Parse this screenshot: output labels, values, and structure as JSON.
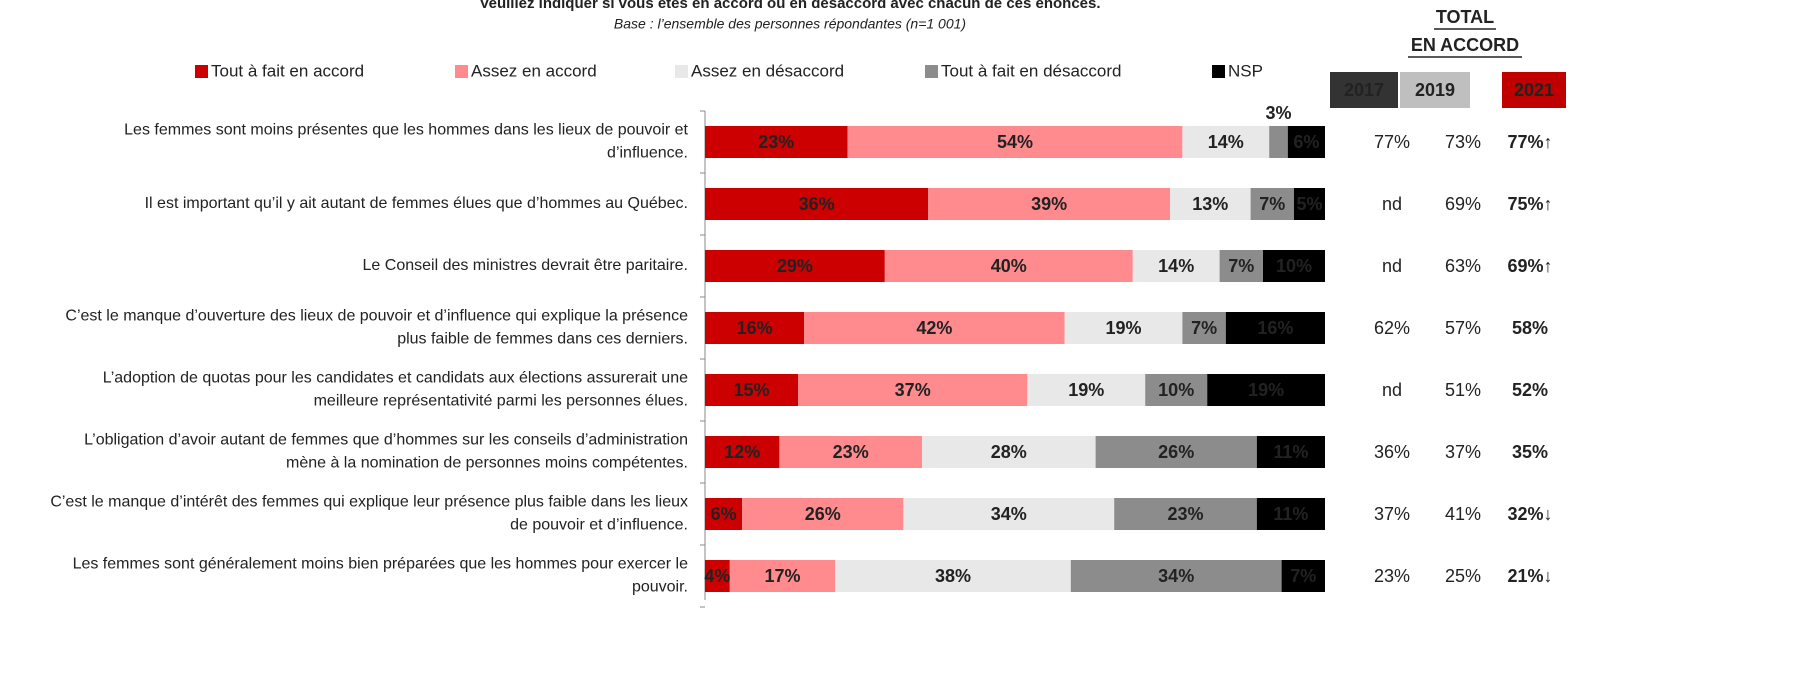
{
  "chart_data": {
    "type": "stacked-barh",
    "title": "Veuillez indiquer si vous êtes en accord ou en désaccord avec chacun de ces énoncés.",
    "subtitle": "Base : l’ensemble des personnes répondantes (n=1 001)",
    "categories": [
      [
        "Les femmes sont moins présentes que les hommes dans les lieux de pouvoir et",
        "d’influence."
      ],
      [
        "Il est important qu’il y ait autant de femmes élues que d’hommes au Québec."
      ],
      [
        "Le Conseil des ministres devrait être paritaire."
      ],
      [
        "C’est le manque d’ouverture des lieux de pouvoir et d’influence qui explique la présence",
        "plus faible de femmes dans ces derniers."
      ],
      [
        "L’adoption de quotas pour les candidates et candidats aux élections assurerait une",
        "meilleure représentativité parmi les personnes élues."
      ],
      [
        "L’obligation d’avoir autant de femmes que d’hommes sur les conseils d’administration",
        "mène à la nomination de personnes moins compétentes."
      ],
      [
        "C’est le manque d’intérêt des femmes qui explique leur présence plus faible dans les lieux",
        "de pouvoir et d’influence."
      ],
      [
        "Les femmes sont généralement moins bien préparées que les hommes pour exercer le",
        "pouvoir."
      ]
    ],
    "xlim": [
      0,
      100
    ],
    "series": [
      {
        "name": "Tout à fait en accord",
        "color": "#cc0000",
        "label_color": "#ffffff",
        "values": [
          23,
          36,
          29,
          16,
          15,
          12,
          6,
          4
        ],
        "value_labels": [
          "23%",
          "36%",
          "29%",
          "16%",
          "15%",
          "12%",
          "6%",
          "4%"
        ]
      },
      {
        "name": "Assez en accord",
        "color": "#ff8b8f",
        "label_color": "#111111",
        "values": [
          54,
          39,
          40,
          42,
          37,
          23,
          26,
          17
        ],
        "value_labels": [
          "54%",
          "39%",
          "40%",
          "42%",
          "37%",
          "23%",
          "26%",
          "17%"
        ]
      },
      {
        "name": "Assez en désaccord",
        "color": "#e8e8e8",
        "label_color": "#111111",
        "values": [
          14,
          13,
          14,
          19,
          19,
          28,
          34,
          38
        ],
        "value_labels": [
          "14%",
          "13%",
          "14%",
          "19%",
          "19%",
          "28%",
          "34%",
          "38%"
        ]
      },
      {
        "name": "Tout à fait en désaccord",
        "color": "#8c8c8c",
        "label_color": "#eeeeee",
        "values": [
          3,
          7,
          7,
          7,
          10,
          26,
          23,
          34
        ],
        "value_labels": [
          "3%",
          "7%",
          "7%",
          "7%",
          "10%",
          "26%",
          "23%",
          "34%"
        ]
      },
      {
        "name": "NSP",
        "color": "#000000",
        "label_color": "#ffffff",
        "values": [
          6,
          5,
          10,
          16,
          19,
          11,
          11,
          7
        ],
        "value_labels": [
          "6%",
          "5%",
          "10%",
          "16%",
          "19%",
          "11%",
          "11%",
          "7%"
        ]
      }
    ]
  },
  "summary_table": {
    "title": [
      "TOTAL",
      "EN ACCORD"
    ],
    "years": [
      "2017",
      "2019",
      "2021"
    ],
    "rows": [
      [
        "77%",
        "73%",
        "77%↑"
      ],
      [
        "nd",
        "69%",
        "75%↑"
      ],
      [
        "nd",
        "63%",
        "69%↑"
      ],
      [
        "62%",
        "57%",
        "58%"
      ],
      [
        "nd",
        "51%",
        "52%"
      ],
      [
        "36%",
        "37%",
        "35%"
      ],
      [
        "37%",
        "41%",
        "32%↓"
      ],
      [
        "23%",
        "25%",
        "21%↓"
      ]
    ]
  }
}
